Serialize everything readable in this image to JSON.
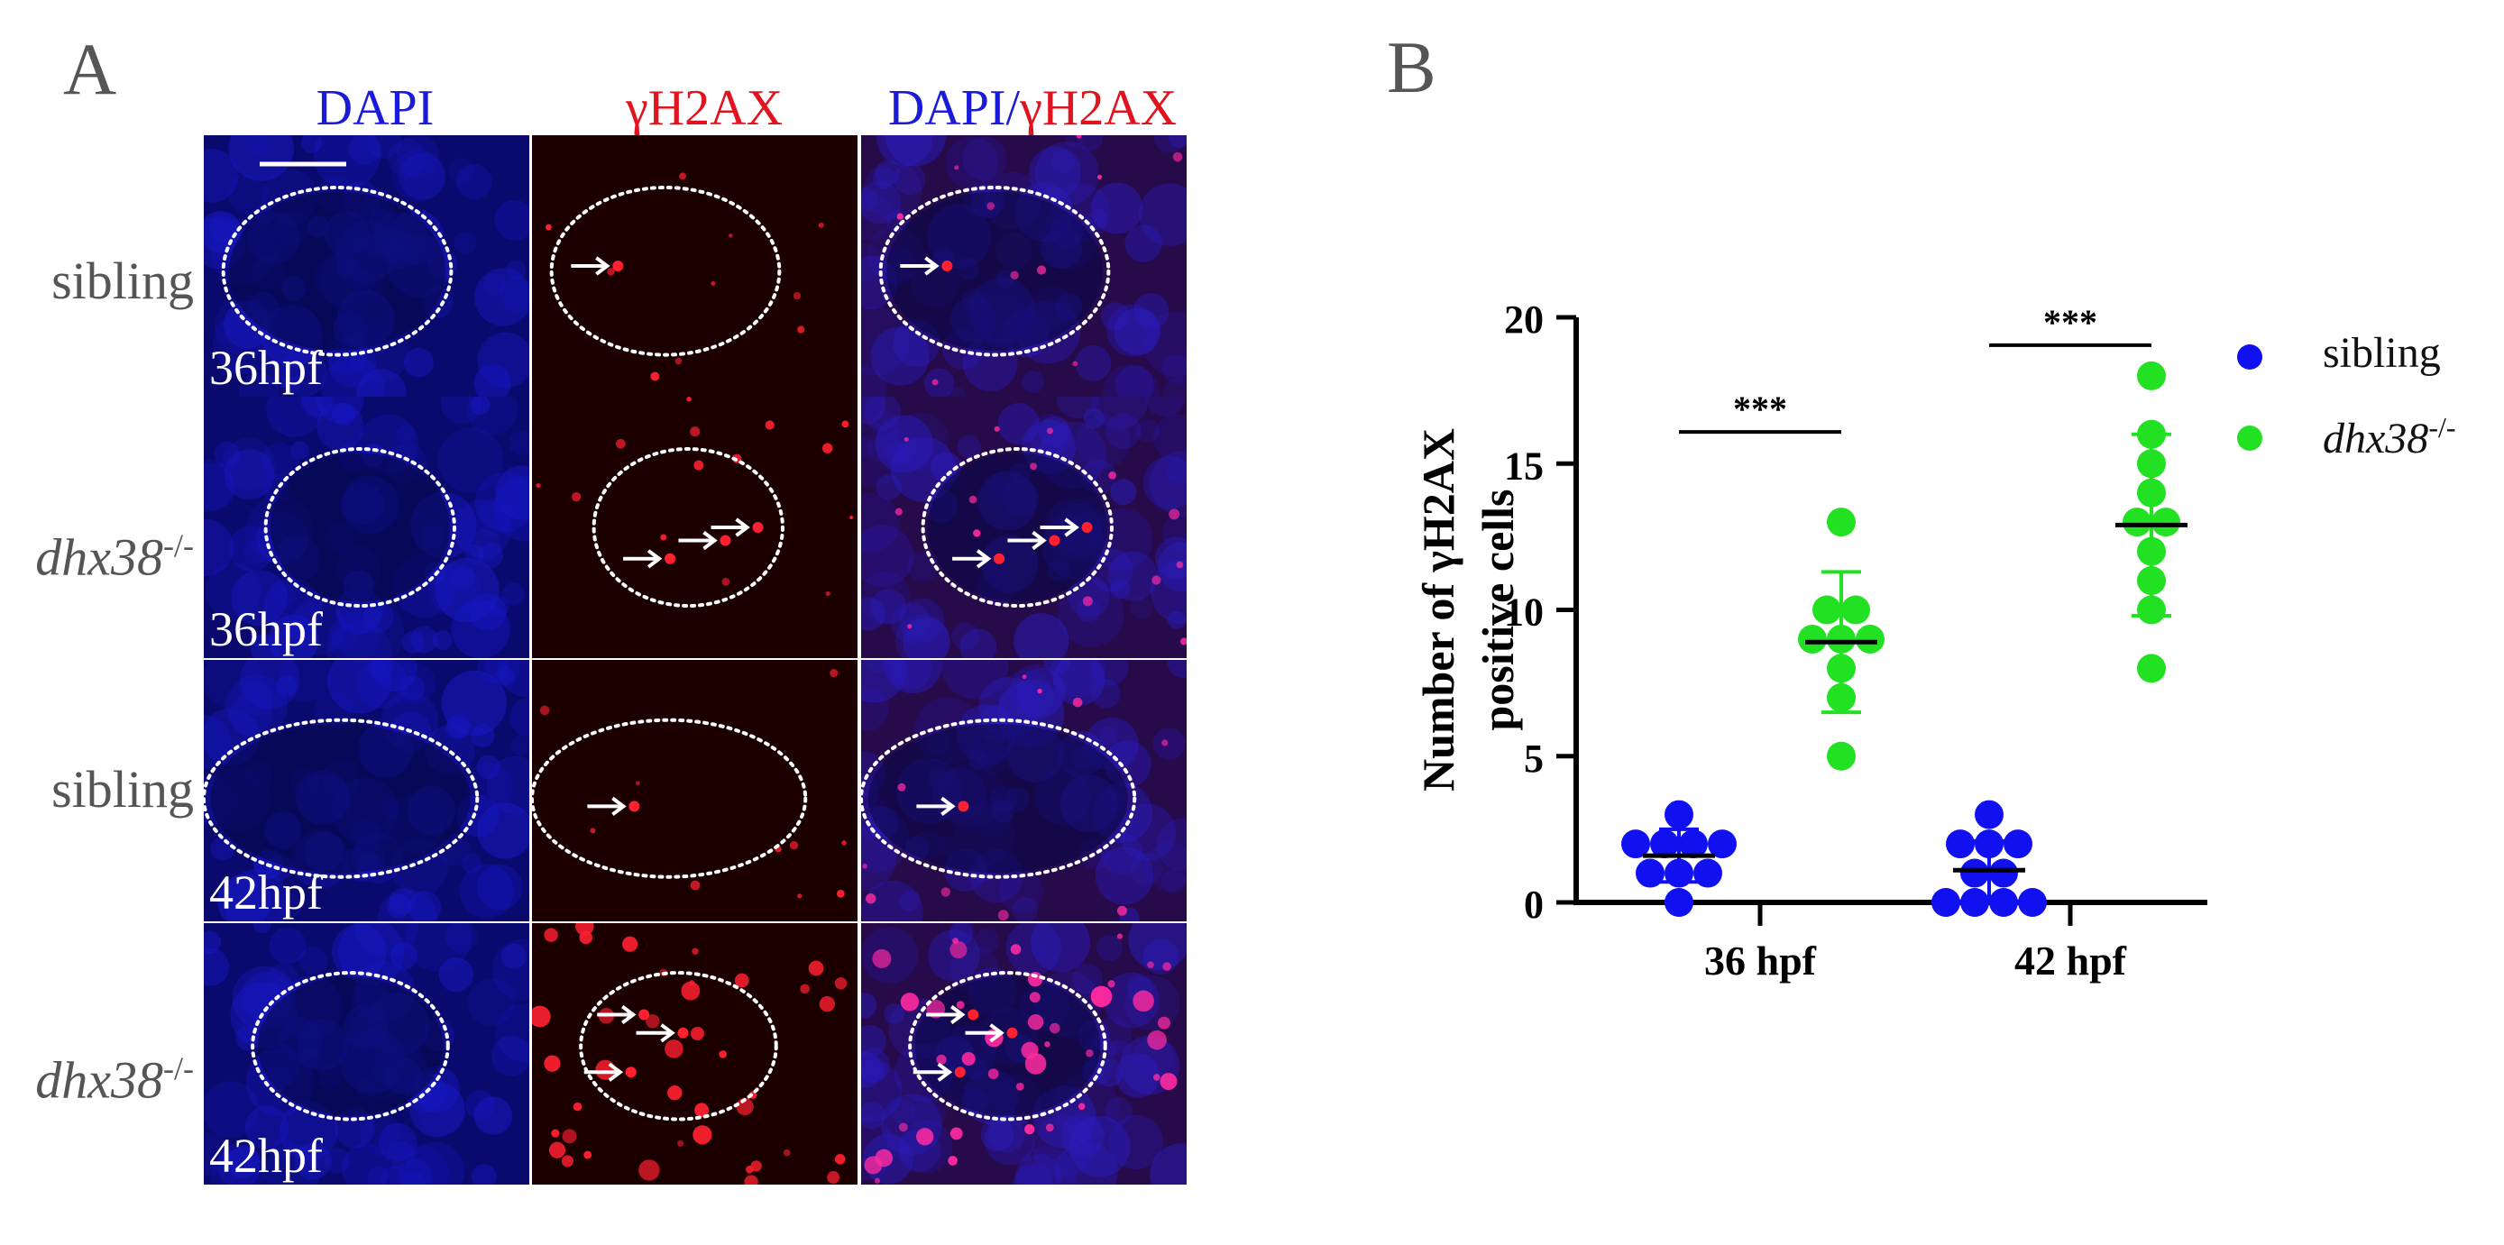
{
  "panel_a": {
    "letter": "A",
    "columns": [
      {
        "label": "DAPI",
        "color": "#1a1adb"
      },
      {
        "label": "γH2AX",
        "color": "#e0141e"
      },
      {
        "label_blue": "DAPI/",
        "label_red": "γH2AX"
      }
    ],
    "rows": [
      {
        "genotype": "sibling",
        "italic": false,
        "time": "36hpf"
      },
      {
        "genotype": "dhx38",
        "superscript": "-/-",
        "italic": true,
        "time": "36hpf"
      },
      {
        "genotype": "sibling",
        "italic": false,
        "time": "42hpf"
      },
      {
        "genotype": "dhx38",
        "superscript": "-/-",
        "italic": true,
        "time": "42hpf"
      }
    ],
    "channel_colors": {
      "dapi": "#1010c8",
      "gh2ax": "#ff1a2a",
      "background_red": "#2a0202"
    }
  },
  "panel_b": {
    "letter": "B",
    "chart_data": {
      "type": "scatter",
      "ylabel_line1": "Number of γH2AX",
      "ylabel_line2": "positive cells",
      "ylim": [
        0,
        20
      ],
      "yticks": [
        "0",
        "5",
        "10",
        "15",
        "20"
      ],
      "categories": [
        "36 hpf",
        "42 hpf"
      ],
      "significance": [
        "***",
        "***"
      ],
      "series": [
        {
          "name": "sibling",
          "color": "#1010f0",
          "groups": [
            {
              "category": "36 hpf",
              "values": [
                3,
                2,
                2,
                2,
                2,
                1,
                1,
                1,
                0
              ],
              "mean": 1.6,
              "sd": 0.9
            },
            {
              "category": "42 hpf",
              "values": [
                3,
                2,
                2,
                2,
                1,
                1,
                0,
                0,
                0,
                0
              ],
              "mean": 1.1,
              "sd": 1.0
            }
          ]
        },
        {
          "name": "dhx38",
          "name_superscript": "-/-",
          "color": "#22e022",
          "groups": [
            {
              "category": "36 hpf",
              "values": [
                13,
                10,
                10,
                9,
                9,
                9,
                8,
                7,
                5
              ],
              "mean": 8.9,
              "sd": 2.4
            },
            {
              "category": "42 hpf",
              "values": [
                18,
                16,
                15,
                14,
                13,
                13,
                12,
                11,
                10,
                8
              ],
              "mean": 12.9,
              "sd": 3.1
            }
          ]
        }
      ]
    }
  }
}
